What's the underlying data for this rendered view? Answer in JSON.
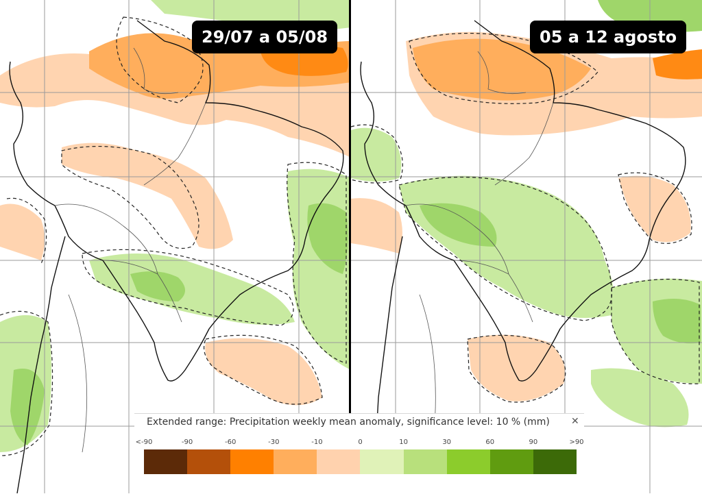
{
  "maps": {
    "left": {
      "period_label": "29/07 a 05/08"
    },
    "right": {
      "period_label": "05 a 12 agosto"
    }
  },
  "legend": {
    "title": "Extended range: Precipitation weekly mean anomaly, significance level: 10 % (mm)",
    "close_icon": "close-icon",
    "tick_labels": [
      "<-90",
      "-90",
      "-60",
      "-30",
      "-10",
      "0",
      "10",
      "30",
      "60",
      "90",
      ">90"
    ],
    "colors": [
      "#5c2a08",
      "#b4500a",
      "#ff8000",
      "#ffae5c",
      "#ffd2ae",
      "#e0f2b8",
      "#b8e07c",
      "#8ccc2c",
      "#609c10",
      "#3c6a08"
    ]
  },
  "colors": {
    "dry_light": "#ffd4b0",
    "dry_medium": "#ffb070",
    "dry_strong": "#ff8a14",
    "wet_light": "#c8eaa0",
    "wet_medium": "#9fd66a",
    "coast": "#111111",
    "grid": "#9a9a9a"
  }
}
